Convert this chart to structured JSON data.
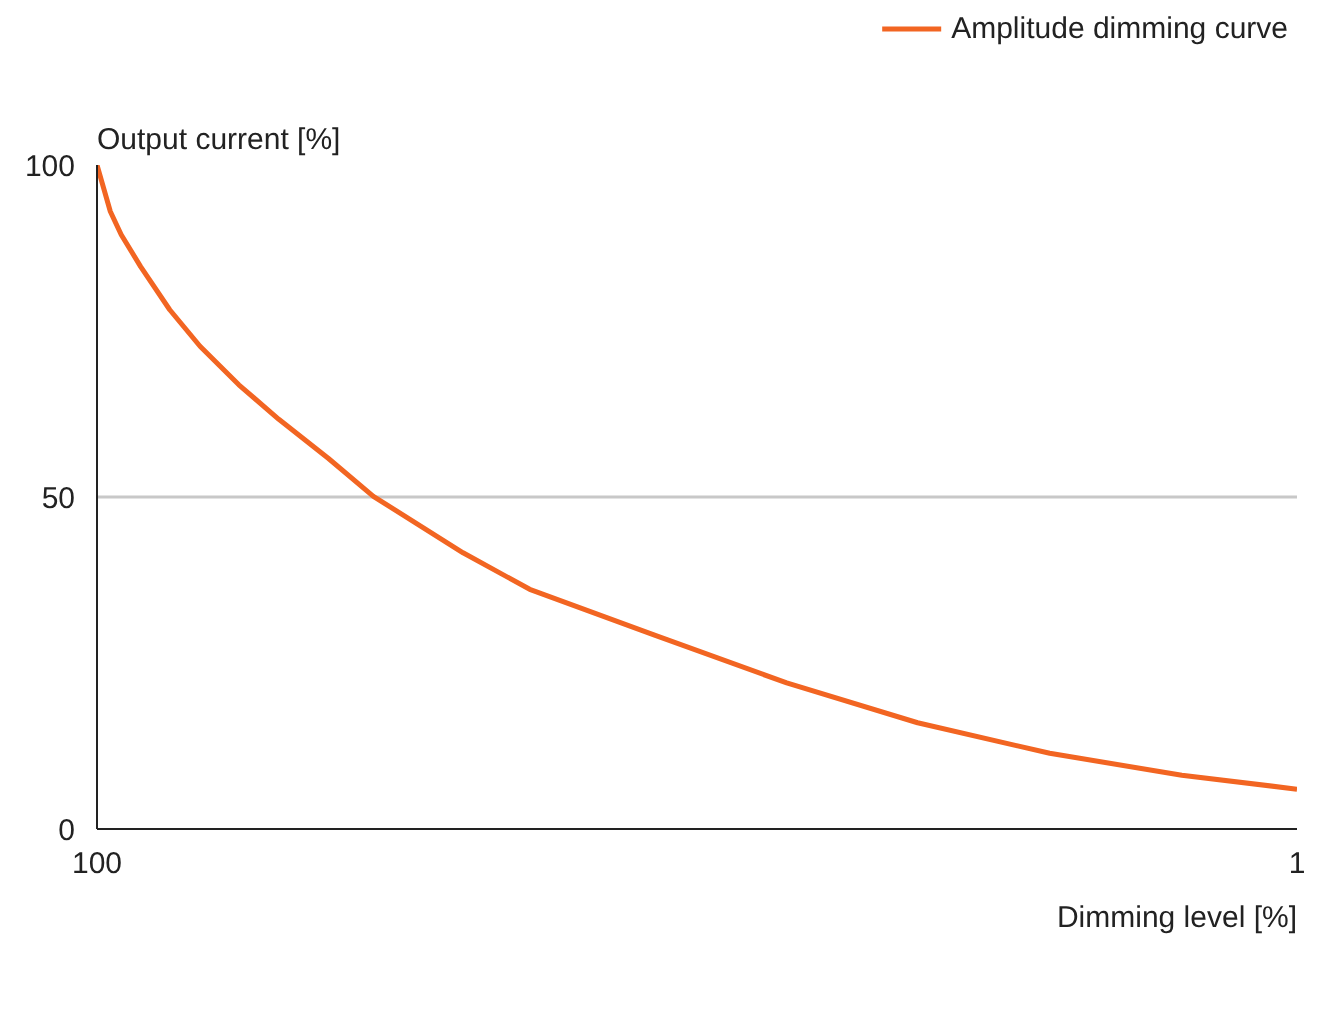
{
  "chart_data": {
    "type": "line",
    "xlabel": "Dimming level [%]",
    "ylabel": "Output current [%]",
    "x": [
      100,
      98.9,
      98,
      96.4,
      94,
      91.5,
      88.3,
      85,
      80.9,
      77.2,
      69.8,
      64.3,
      54,
      43.1,
      32.3,
      21.4,
      10.5,
      1
    ],
    "series": [
      {
        "name": "Amplitude dimming curve",
        "color": "#f26522",
        "values": [
          100,
          93,
          89.5,
          84.7,
          78.2,
          72.7,
          66.9,
          61.7,
          55.8,
          50.1,
          41.6,
          36.1,
          29.2,
          22,
          16,
          11.4,
          8.1,
          6
        ]
      }
    ],
    "xlim": [
      100,
      1
    ],
    "ylim": [
      0,
      100
    ],
    "xticks": [
      100,
      1
    ],
    "yticks": [
      0,
      50,
      100
    ],
    "grid": "y",
    "legend": "top right",
    "marker": "none",
    "line_style": "solid"
  }
}
